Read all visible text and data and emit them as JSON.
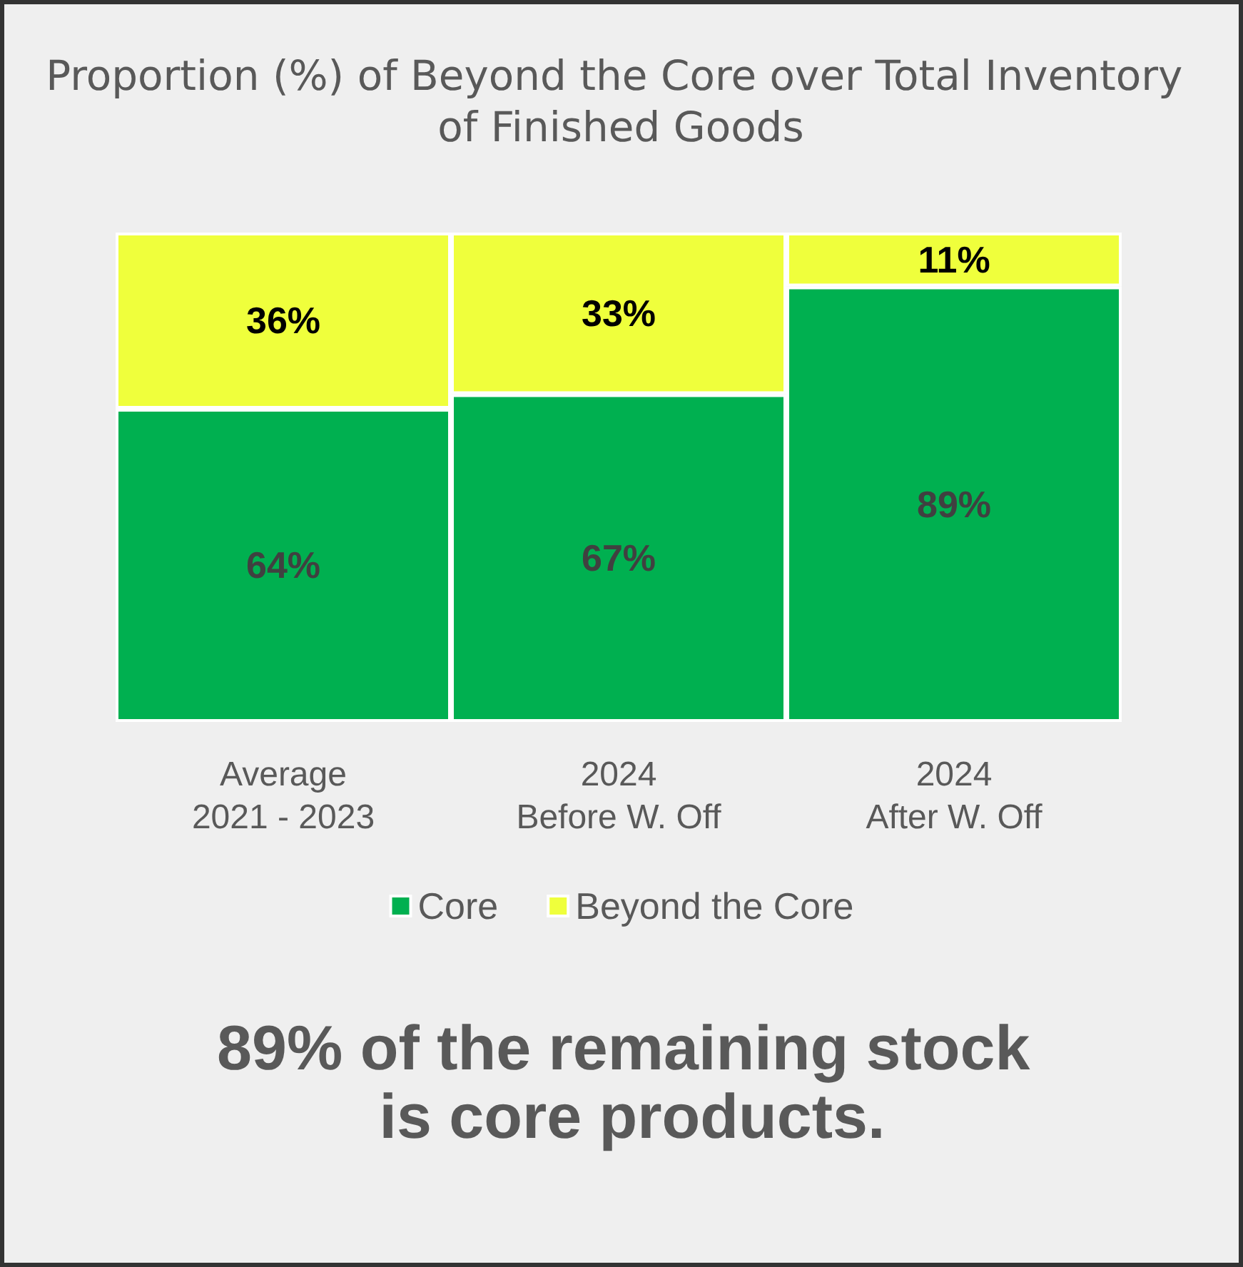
{
  "chart_data": {
    "type": "bar",
    "stacked": true,
    "title": "Proportion (%) of Beyond the Core over Total Inventory of Finished Goods",
    "categories": [
      "Average\n2021 - 2023",
      "2024\nBefore W. Off",
      "2024\nAfter W. Off"
    ],
    "series": [
      {
        "name": "Core",
        "color": "#00b050",
        "values": [
          64,
          67,
          89
        ],
        "value_labels": [
          "64%",
          "67%",
          "89%"
        ]
      },
      {
        "name": "Beyond the Core",
        "color": "#efff3c",
        "values": [
          36,
          33,
          11
        ],
        "value_labels": [
          "36%",
          "33%",
          "11%"
        ]
      }
    ],
    "legend": "bottom",
    "annotations": [
      "89% of the remaining stock is core products."
    ]
  }
}
